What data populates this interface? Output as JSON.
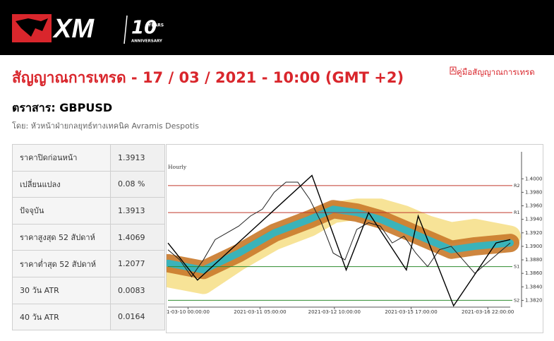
{
  "logo": {
    "brand": "XM",
    "years": "10",
    "years_word": "YEARS",
    "anniversary": "ANNIVERSARY"
  },
  "header": {
    "title": "สัญญาณการเทรด - 17 / 03 / 2021 - 10:00 (GMT +2)",
    "guide_link": "คู่มือสัญญาณการเทรด",
    "instrument": "ตราสาร: GBPUSD",
    "author": "โดย: หัวหน้าฝ่ายกลยุทธ์ทางเทคนิค Avramis Despotis"
  },
  "table": {
    "rows": [
      [
        "ราคาปิดก่อนหน้า",
        "1.3913"
      ],
      [
        "เปลี่ยนแปลง",
        "0.08 %"
      ],
      [
        "ปัจจุบัน",
        "1.3913"
      ],
      [
        "ราคาสูงสุด 52 สัปดาห์",
        "1.4069"
      ],
      [
        "ราคาต่ำสุด 52 สัปดาห์",
        "1.2077"
      ],
      [
        "30 วัน ATR",
        "0.0083"
      ],
      [
        "40 วัน ATR",
        "0.0164"
      ]
    ]
  },
  "chart_data": {
    "type": "line",
    "title": "Hourly",
    "xlim": [
      0,
      29
    ],
    "ylim": [
      1.381,
      1.404
    ],
    "xticks": [
      {
        "value": 1.7,
        "label": "1-03-10 00:00:00"
      },
      {
        "value": 7.8,
        "label": "2021-03-11 05:00:00"
      },
      {
        "value": 14.1,
        "label": "2021-03-12 10:00:00"
      },
      {
        "value": 20.6,
        "label": "2021-03-15 17:00:00"
      },
      {
        "value": 27.1,
        "label": "2021-03-16 22:00:00"
      }
    ],
    "yticks": [
      {
        "value": 1.382,
        "label": "1.3820"
      },
      {
        "value": 1.384,
        "label": "1.3840"
      },
      {
        "value": 1.386,
        "label": "1.3860"
      },
      {
        "value": 1.388,
        "label": "1.3880"
      },
      {
        "value": 1.39,
        "label": "1.3900"
      },
      {
        "value": 1.392,
        "label": "1.3920"
      },
      {
        "value": 1.394,
        "label": "1.3940"
      },
      {
        "value": 1.396,
        "label": "1.3960"
      },
      {
        "value": 1.398,
        "label": "1.3980"
      },
      {
        "value": 1.4,
        "label": "1.4000"
      }
    ],
    "levels": [
      {
        "name": "R2",
        "value": 1.399,
        "color": "#c0392b"
      },
      {
        "name": "R1",
        "value": 1.395,
        "color": "#c0392b"
      },
      {
        "name": "S1",
        "value": 1.387,
        "color": "#2e8b2e"
      },
      {
        "name": "S2",
        "value": 1.382,
        "color": "#2e8b2e"
      }
    ],
    "bands": [
      {
        "color": "#f6e08c",
        "width": 30,
        "x": [
          0,
          3,
          6,
          9,
          12,
          14,
          16,
          18,
          20,
          22,
          24,
          26,
          29
        ],
        "values": [
          1.3855,
          1.3845,
          1.388,
          1.391,
          1.393,
          1.395,
          1.3955,
          1.3955,
          1.3945,
          1.393,
          1.392,
          1.3925,
          1.3915
        ]
      },
      {
        "color": "#c9792a",
        "width": 26,
        "x": [
          0,
          3,
          6,
          9,
          12,
          14,
          16,
          18,
          20,
          22,
          24,
          26,
          29
        ],
        "values": [
          1.3875,
          1.3865,
          1.389,
          1.392,
          1.394,
          1.3955,
          1.395,
          1.394,
          1.3925,
          1.391,
          1.3895,
          1.39,
          1.3905
        ]
      },
      {
        "color": "#2ab8c8",
        "width": 10,
        "x": [
          0,
          3,
          6,
          9,
          12,
          14,
          16,
          18,
          20,
          22,
          24,
          26,
          29
        ],
        "values": [
          1.3875,
          1.3865,
          1.389,
          1.392,
          1.394,
          1.3955,
          1.395,
          1.394,
          1.3925,
          1.391,
          1.3895,
          1.39,
          1.3905
        ]
      }
    ],
    "series": [
      {
        "color": "#222222",
        "width": 1,
        "x": [
          0,
          1,
          2,
          3,
          4,
          5,
          6,
          7,
          8,
          9,
          10,
          11,
          12,
          13,
          14,
          15,
          16,
          17,
          18,
          19,
          20,
          21,
          22,
          23,
          24,
          25,
          26,
          27,
          28,
          29
        ],
        "values": [
          1.3895,
          1.388,
          1.3855,
          1.388,
          1.391,
          1.392,
          1.393,
          1.3945,
          1.3955,
          1.398,
          1.3995,
          1.3995,
          1.397,
          1.3935,
          1.389,
          1.388,
          1.3925,
          1.3935,
          1.393,
          1.3905,
          1.3915,
          1.389,
          1.387,
          1.3895,
          1.39,
          1.388,
          1.386,
          1.3875,
          1.389,
          1.3905
        ]
      },
      {
        "color": "#000000",
        "width": 1.4,
        "x": [
          0,
          2.5,
          12.2,
          15.1,
          17,
          20.2,
          21.2,
          24.2,
          27.8,
          29
        ],
        "values": [
          1.3905,
          1.385,
          1.4005,
          1.3865,
          1.395,
          1.3865,
          1.3945,
          1.3812,
          1.3905,
          1.391
        ]
      }
    ]
  }
}
